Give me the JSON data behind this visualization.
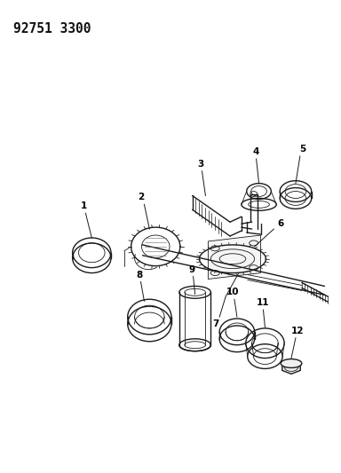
{
  "title": "92751 3300",
  "bg_color": "#ffffff",
  "fig_width": 3.84,
  "fig_height": 5.33,
  "dpi": 100,
  "line_color": "#1a1a1a",
  "lw_main": 1.0,
  "lw_thin": 0.6,
  "label_fontsize": 7.5,
  "title_fontsize": 10.5
}
